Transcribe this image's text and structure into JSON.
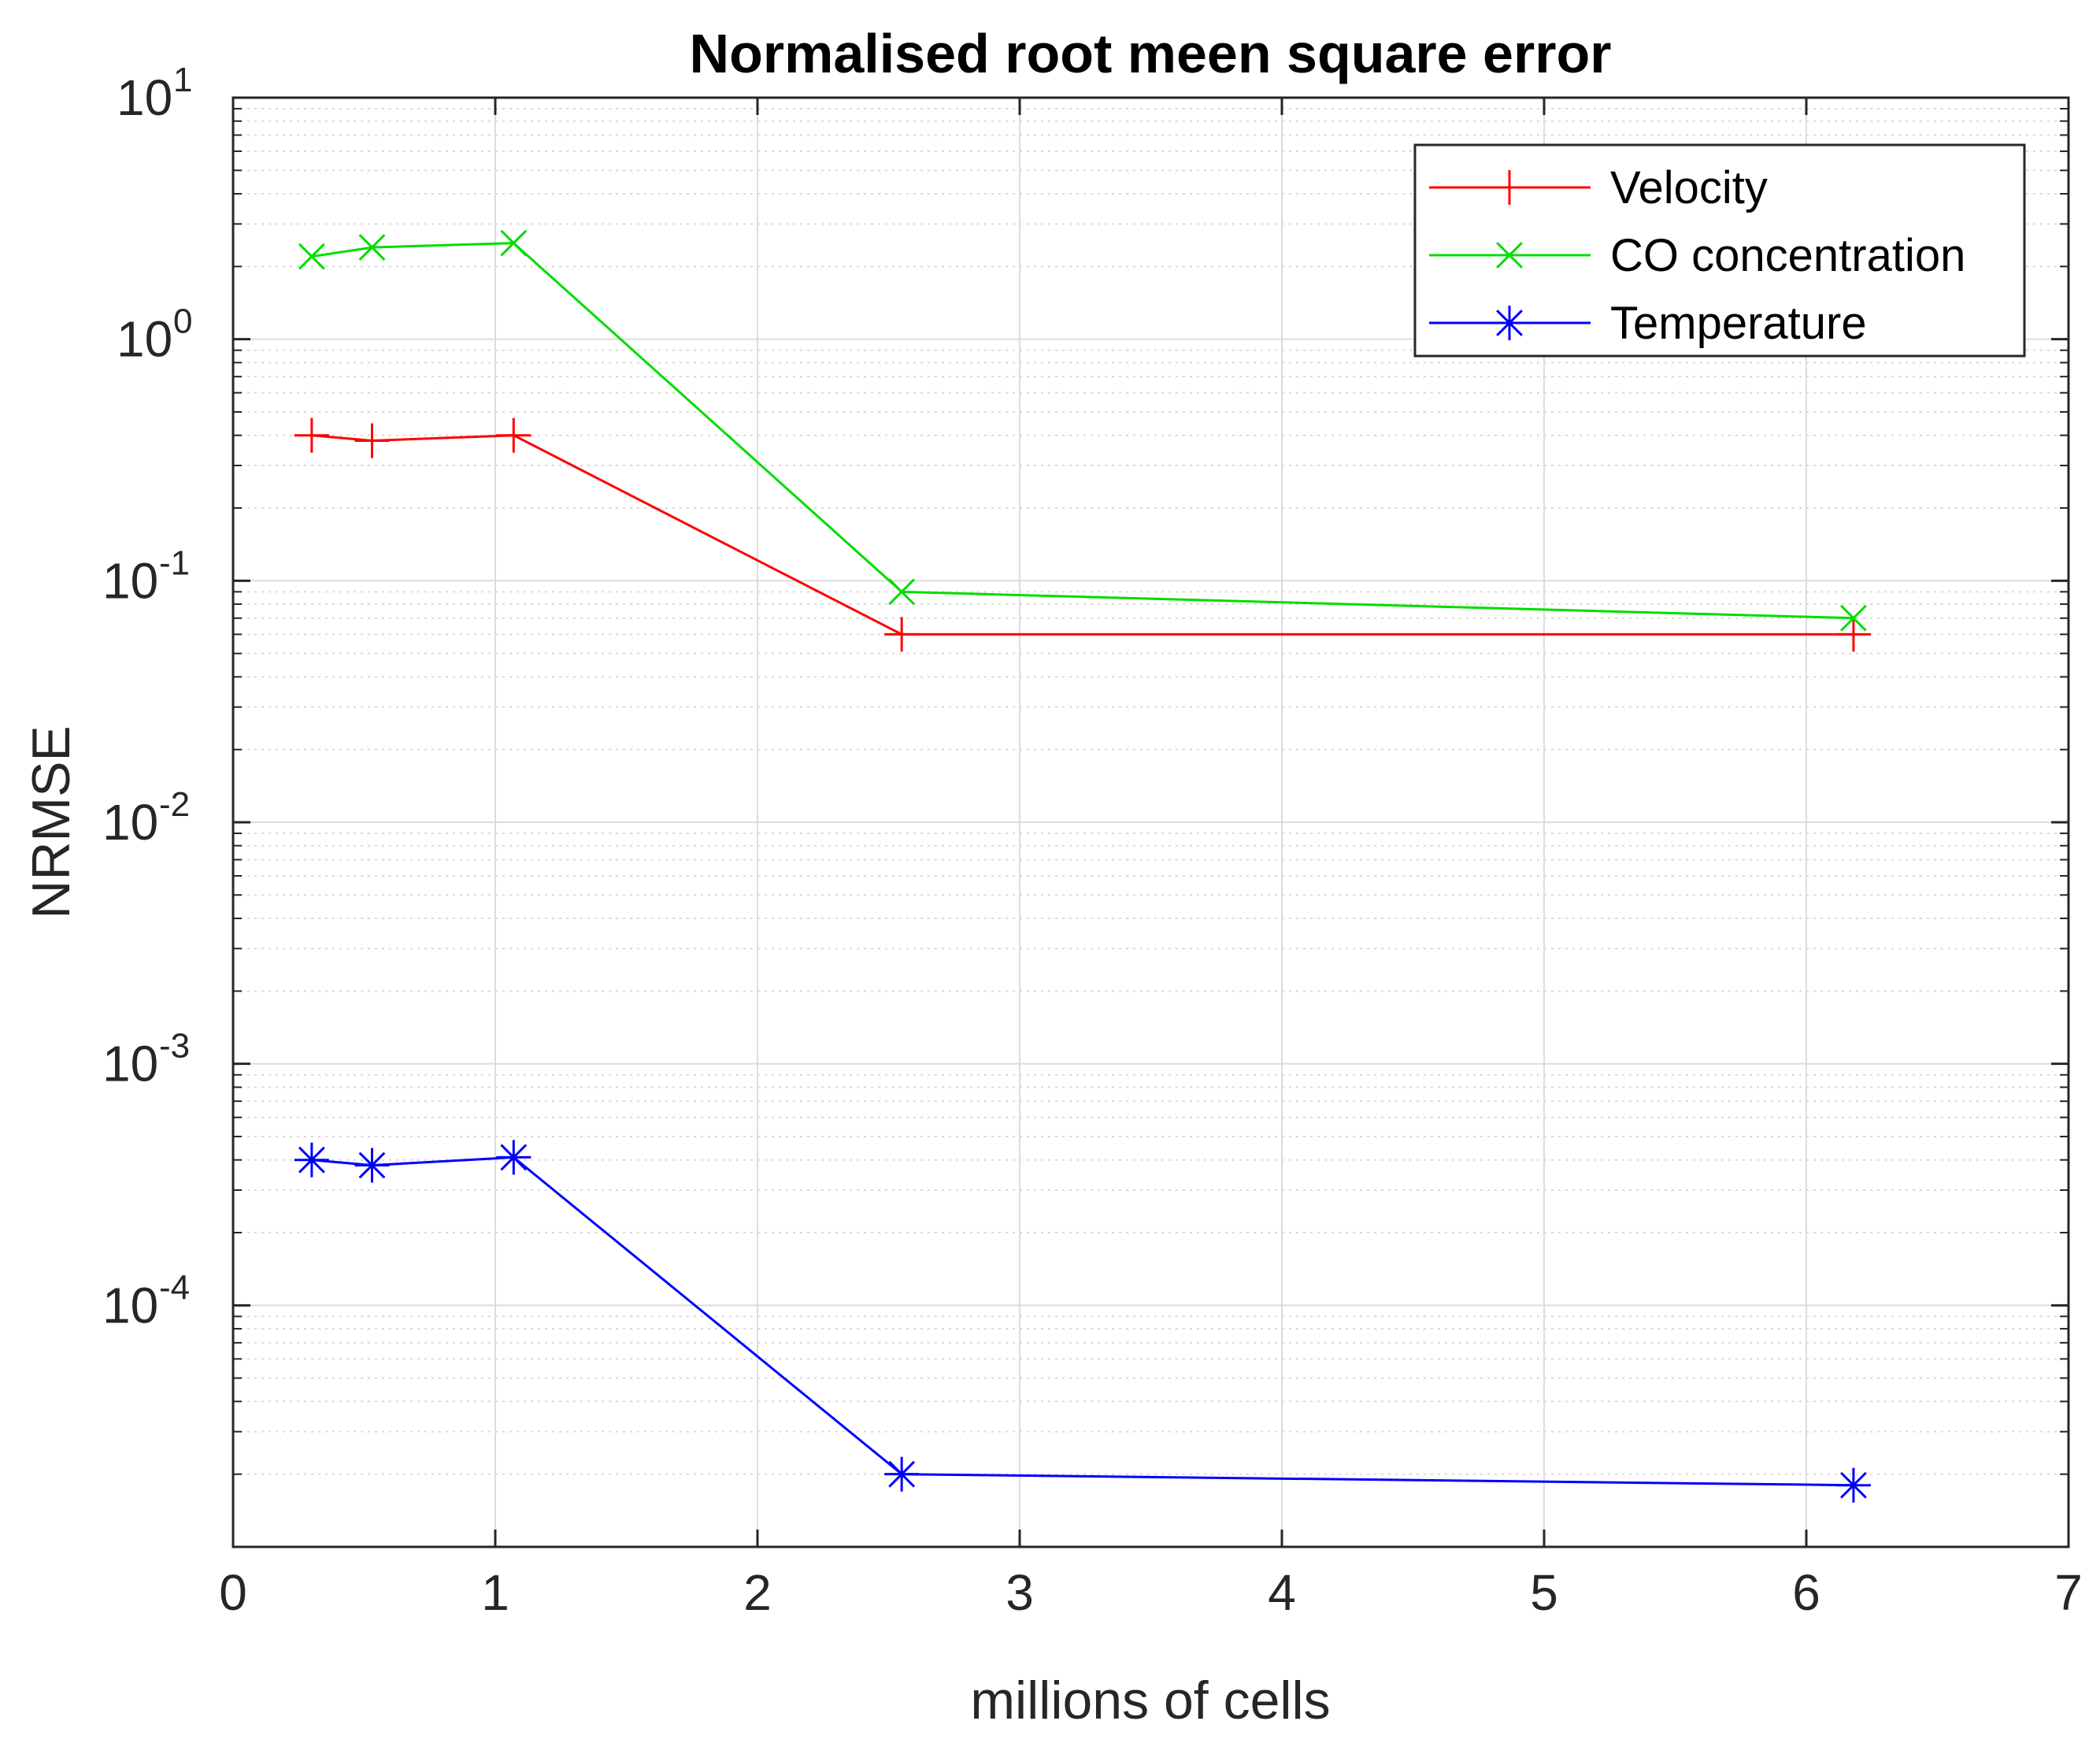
{
  "chart_data": {
    "type": "line",
    "title": "Normalised root meen square error",
    "xlabel": "millions of cells",
    "ylabel": "NRMSE",
    "xlim": [
      0,
      7
    ],
    "ylim": [
      1e-05,
      10
    ],
    "yscale": "log",
    "grid": true,
    "minor_grid": true,
    "x_ticks": [
      {
        "value": 0,
        "label": "0"
      },
      {
        "value": 1,
        "label": "1"
      },
      {
        "value": 2,
        "label": "2"
      },
      {
        "value": 3,
        "label": "3"
      },
      {
        "value": 4,
        "label": "4"
      },
      {
        "value": 5,
        "label": "5"
      },
      {
        "value": 6,
        "label": "6"
      },
      {
        "value": 7,
        "label": "7"
      }
    ],
    "y_ticks": [
      {
        "value": 10,
        "base": "10",
        "exp": "1"
      },
      {
        "value": 1,
        "base": "10",
        "exp": "0"
      },
      {
        "value": 0.1,
        "base": "10",
        "exp": "-1"
      },
      {
        "value": 0.01,
        "base": "10",
        "exp": "-2"
      },
      {
        "value": 0.001,
        "base": "10",
        "exp": "-3"
      },
      {
        "value": 0.0001,
        "base": "10",
        "exp": "-4"
      }
    ],
    "legend_position": "top-right",
    "x": [
      0.3,
      0.53,
      1.07,
      2.55,
      6.18
    ],
    "series": [
      {
        "name": "Velocity",
        "color": "#ff0000",
        "marker": "plus",
        "values": [
          0.4,
          0.38,
          0.4,
          0.06,
          0.06
        ]
      },
      {
        "name": "CO concentration",
        "color": "#00dd00",
        "marker": "x",
        "values": [
          2.2,
          2.4,
          2.5,
          0.09,
          0.07
        ]
      },
      {
        "name": "Temperature",
        "color": "#0000ff",
        "marker": "star",
        "values": [
          0.0004,
          0.00038,
          0.00041,
          2e-05,
          1.8e-05
        ]
      }
    ]
  }
}
